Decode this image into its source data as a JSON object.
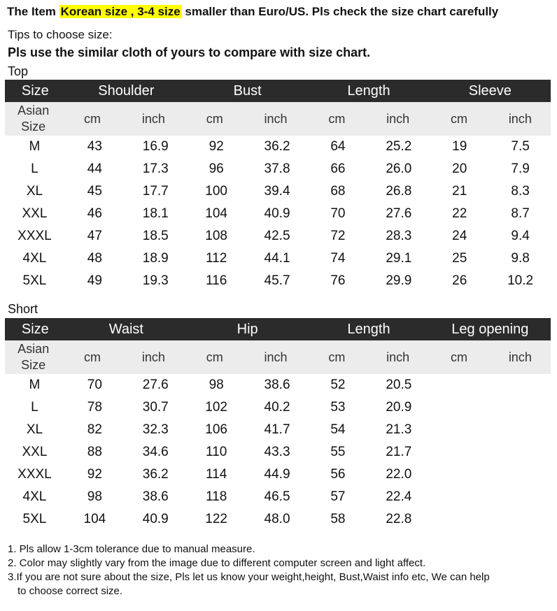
{
  "headline": {
    "prefix": "The Item ",
    "highlight": "Korean size , 3-4 size",
    "suffix": " smaller than Euro/US. Pls check the size chart carefully"
  },
  "tips": "Tips to choose size:",
  "tips_bold": "Pls use the similar cloth of yours to compare with size chart.",
  "top": {
    "label": "Top",
    "size_header": "Size",
    "groups": [
      "Shoulder",
      "Bust",
      "Length",
      "Sleeve"
    ],
    "asian_line1": "Asian",
    "asian_line2": "Size",
    "units": [
      "cm",
      "inch",
      "cm",
      "inch",
      "cm",
      "inch",
      "cm",
      "inch"
    ],
    "rows": [
      [
        "M",
        "43",
        "16.9",
        "92",
        "36.2",
        "64",
        "25.2",
        "19",
        "7.5"
      ],
      [
        "L",
        "44",
        "17.3",
        "96",
        "37.8",
        "66",
        "26.0",
        "20",
        "7.9"
      ],
      [
        "XL",
        "45",
        "17.7",
        "100",
        "39.4",
        "68",
        "26.8",
        "21",
        "8.3"
      ],
      [
        "XXL",
        "46",
        "18.1",
        "104",
        "40.9",
        "70",
        "27.6",
        "22",
        "8.7"
      ],
      [
        "XXXL",
        "47",
        "18.5",
        "108",
        "42.5",
        "72",
        "28.3",
        "24",
        "9.4"
      ],
      [
        "4XL",
        "48",
        "18.9",
        "112",
        "44.1",
        "74",
        "29.1",
        "25",
        "9.8"
      ],
      [
        "5XL",
        "49",
        "19.3",
        "116",
        "45.7",
        "76",
        "29.9",
        "26",
        "10.2"
      ]
    ]
  },
  "short": {
    "label": "Short",
    "size_header": "Size",
    "groups": [
      "Waist",
      "Hip",
      "Length",
      "Leg opening"
    ],
    "asian_line1": "Asian",
    "asian_line2": "Size",
    "units": [
      "cm",
      "inch",
      "cm",
      "inch",
      "cm",
      "inch",
      "cm",
      "inch"
    ],
    "rows": [
      [
        "M",
        "70",
        "27.6",
        "98",
        "38.6",
        "52",
        "20.5",
        "",
        ""
      ],
      [
        "L",
        "78",
        "30.7",
        "102",
        "40.2",
        "53",
        "20.9",
        "",
        ""
      ],
      [
        "XL",
        "82",
        "32.3",
        "106",
        "41.7",
        "54",
        "21.3",
        "",
        ""
      ],
      [
        "XXL",
        "88",
        "34.6",
        "110",
        "43.3",
        "55",
        "21.7",
        "",
        ""
      ],
      [
        "XXXL",
        "92",
        "36.2",
        "114",
        "44.9",
        "56",
        "22.0",
        "",
        ""
      ],
      [
        "4XL",
        "98",
        "38.6",
        "118",
        "46.5",
        "57",
        "22.4",
        "",
        ""
      ],
      [
        "5XL",
        "104",
        "40.9",
        "122",
        "48.0",
        "58",
        "22.8",
        "",
        ""
      ]
    ]
  },
  "notes": [
    "1. Pls allow 1-3cm tolerance due to manual measure.",
    "2. Color may slightly vary from the image due to different computer screen and light affect.",
    "3.If you are not sure about the size, Pls let us know your weight,height, Bust,Waist info etc, We can help",
    "to choose correct size."
  ]
}
